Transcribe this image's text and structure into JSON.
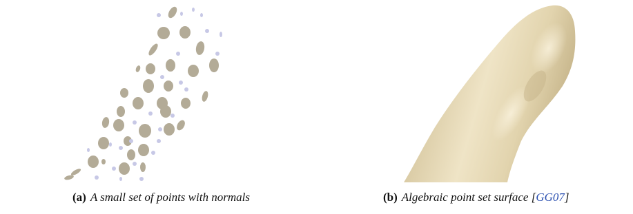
{
  "figures": [
    {
      "label": "(a)",
      "caption": "A small set of points with normals"
    },
    {
      "label": "(b)",
      "caption": "Algebraic point set surface [",
      "citation": "GG07",
      "caption_end": "]"
    }
  ]
}
